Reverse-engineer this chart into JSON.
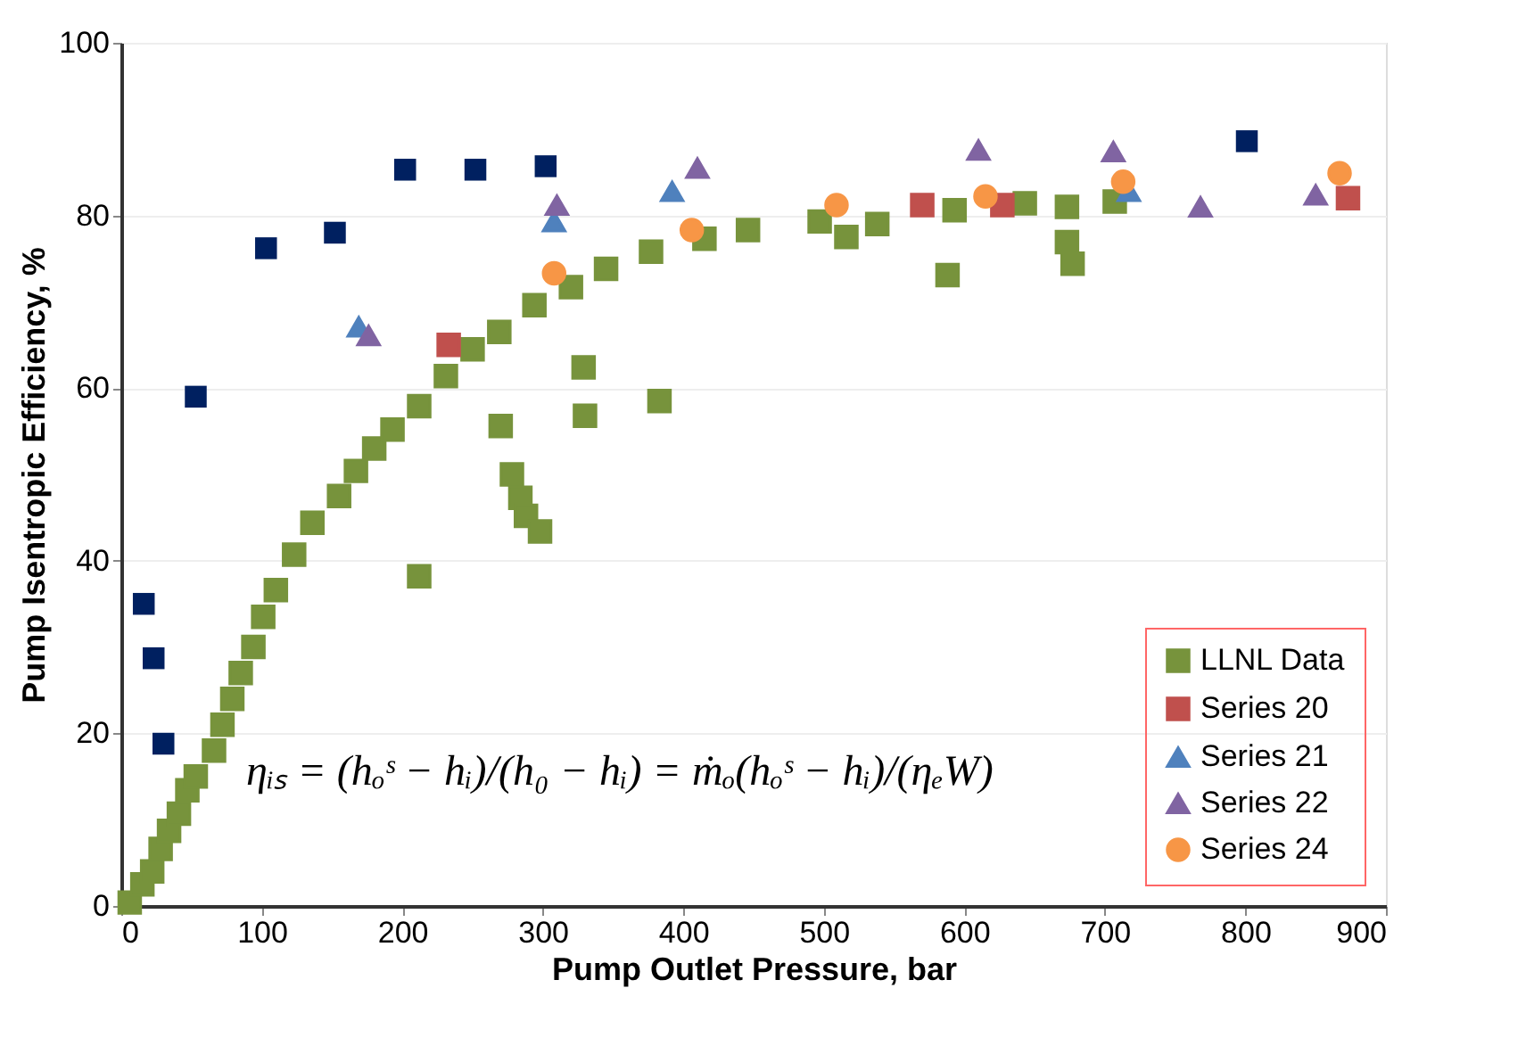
{
  "chart_data": {
    "type": "scatter",
    "xlabel": "Pump Outlet Pressure, bar",
    "ylabel": "Pump Isentropic Efficiency, %",
    "xlim": [
      0,
      900
    ],
    "xticks": [
      0,
      100,
      200,
      300,
      400,
      500,
      600,
      700,
      800,
      900
    ],
    "ylim": [
      0,
      100
    ],
    "yticks": [
      0,
      20,
      40,
      60,
      80,
      100
    ],
    "grid": "y",
    "legend": "bottom right",
    "annotations": [
      "ηᵢₛ = (hₒˢ − hᵢ)/(h₀ − hᵢ) = ṁₒ(hₒˢ − hᵢ)/(ηₑW)"
    ],
    "series": [
      {
        "name": "LLNL Data",
        "color": "#77933c",
        "marker": "square",
        "x": [
          6,
          15,
          22,
          28,
          34,
          41,
          47,
          53,
          66,
          72,
          79,
          85,
          94,
          101,
          110,
          123,
          136,
          155,
          167,
          180,
          193,
          212,
          231,
          250,
          269,
          294,
          320,
          345,
          377,
          415,
          446,
          497,
          516,
          538,
          593,
          643,
          673,
          707,
          673,
          677,
          588,
          329,
          330,
          383,
          270,
          278,
          284,
          288,
          298,
          212
        ],
        "values": [
          0.4,
          2.5,
          4,
          6.6,
          8.7,
          10.7,
          13.4,
          15,
          18,
          21,
          24,
          27,
          30,
          33.5,
          36.6,
          40.7,
          44.4,
          47.5,
          50.4,
          53,
          55.2,
          57.9,
          61.4,
          64.5,
          66.5,
          69.6,
          71.7,
          73.8,
          75.8,
          77.3,
          78.3,
          79.3,
          77.5,
          79,
          80.6,
          81.4,
          81,
          81.6,
          76.9,
          74.4,
          73.1,
          62.4,
          56.8,
          58.5,
          55.6,
          50,
          47.3,
          45.2,
          43.4,
          38.2
        ]
      },
      {
        "color": "#002060",
        "marker": "square",
        "x": [
          16,
          23,
          30,
          53,
          103,
          152,
          202,
          252,
          302,
          801
        ],
        "values": [
          35,
          28.7,
          18.8,
          59,
          76.2,
          78,
          85.3,
          85.3,
          85.7,
          88.6
        ]
      },
      {
        "name": "Series 20",
        "color": "#c0504d",
        "marker": "square",
        "x": [
          233,
          570,
          627,
          873
        ],
        "values": [
          65,
          81.2,
          81.2,
          82
        ]
      },
      {
        "name": "Series 21",
        "color": "#4f81bd",
        "marker": "triangle",
        "x": [
          169,
          308,
          392,
          717
        ],
        "values": [
          67.1,
          79.3,
          82.8,
          82.8
        ]
      },
      {
        "name": "Series 22",
        "color": "#8064a2",
        "marker": "triangle",
        "x": [
          176,
          310,
          410,
          610,
          706,
          768,
          850
        ],
        "values": [
          66.1,
          81.2,
          85.5,
          87.6,
          87.4,
          81,
          82.4
        ]
      },
      {
        "name": "Series 24",
        "color": "#f79646",
        "marker": "circle",
        "x": [
          308,
          406,
          509,
          615,
          713,
          867
        ],
        "values": [
          73.3,
          78.3,
          81.2,
          82.2,
          83.9,
          84.9
        ]
      }
    ]
  }
}
